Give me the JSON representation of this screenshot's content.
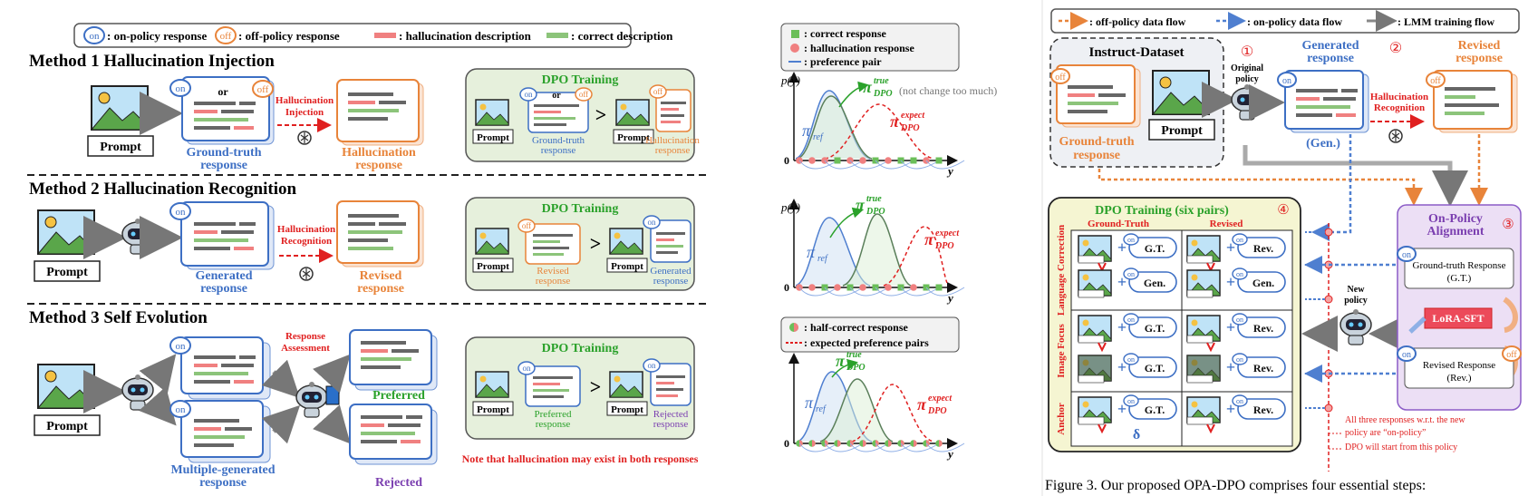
{
  "left": {
    "legend": {
      "on_badge": "on",
      "on_label": ": on-policy response",
      "off_badge": "off",
      "off_label": ": off-policy response",
      "halluc_label": ": hallucination description",
      "correct_label": ": correct description"
    },
    "method1": {
      "title": "Method 1 Hallucination Injection",
      "prompt": "Prompt",
      "or": "or",
      "gt_line1": "Ground-truth",
      "gt_line2": "response",
      "arrow_line1": "Hallucination",
      "arrow_line2": "Injection",
      "out_line1": "Hallucination",
      "out_line2": "response",
      "dpo_title": "DPO Training",
      "dpo_left_line1": "Ground-truth",
      "dpo_left_line2": "response",
      "dpo_right_line1": "Hallucination",
      "dpo_right_line2": "response"
    },
    "method2": {
      "title": "Method 2 Hallucination Recognition",
      "prompt": "Prompt",
      "gen_line1": "Generated",
      "gen_line2": "response",
      "arrow_line1": "Hallucination",
      "arrow_line2": "Recognition",
      "out_line1": "Revised",
      "out_line2": "response",
      "dpo_title": "DPO Training",
      "dpo_left_line1": "Revised",
      "dpo_left_line2": "response",
      "dpo_right_line1": "Generated",
      "dpo_right_line2": "response"
    },
    "method3": {
      "title": "Method 3 Self Evolution",
      "prompt": "Prompt",
      "assess_line1": "Response",
      "assess_line2": "Assessment",
      "preferred": "Preferred",
      "rejected": "Rejected",
      "multi_line1": "Multiple-generated",
      "multi_line2": "response",
      "dpo_title": "DPO Training",
      "dpo_left_line1": "Preferred",
      "dpo_left_line2": "response",
      "dpo_right_line1": "Rejected",
      "dpo_right_line2": "response",
      "note": "Note that hallucination may exist in both responses"
    },
    "prompt_label": "Prompt",
    "gt_symbol": ">",
    "plots": {
      "legend1": {
        "correct": ": correct response",
        "halluc": ": hallucination response",
        "pair": ": preference pair"
      },
      "legend2": {
        "half": ": half-correct response",
        "expected": ": expected preference pairs"
      },
      "py": "p(y)",
      "y": "y",
      "zero": "0",
      "pi_true": "π",
      "pi_true_sup": "true",
      "pi_true_sub": "DPO",
      "pi_ref": "π",
      "pi_ref_sub": "ref",
      "pi_exp": "π",
      "pi_exp_sup": "expect",
      "pi_exp_sub": "DPO",
      "not_change": "(not change too much)"
    }
  },
  "right": {
    "legend": {
      "off_flow": ": off-policy data flow",
      "on_flow": ": on-policy data flow",
      "lmm_flow": ": LMM training flow"
    },
    "instruct_title": "Instruct-Dataset",
    "prompt": "Prompt",
    "gt_line1": "Ground-truth",
    "gt_line2": "response",
    "step1": "①",
    "step2": "②",
    "step3": "③",
    "step4": "④",
    "original_line1": "Original",
    "original_line2": "policy",
    "gen_line1": "Generated",
    "gen_line2": "response",
    "gen_short": "(Gen.)",
    "recog_line1": "Hallucination",
    "recog_line2": "Recognition",
    "revised_line1": "Revised",
    "revised_line2": "response",
    "dpo_title": "DPO Training (six pairs)",
    "col_gt": "Ground-Truth",
    "col_rev": "Revised",
    "row_lang": "Language Correction",
    "row_image": "Image Focus",
    "row_anchor": "Anchor",
    "plus": "+",
    "gt": "G.T.",
    "gen": "Gen.",
    "rev": "Rev.",
    "delta": "δ",
    "onpa_line1": "On-Policy",
    "onpa_line2": "Alignment",
    "gt_resp_line1": "Ground-truth Response",
    "gt_resp_line2": "(G.T.)",
    "lora": "LoRA-SFT",
    "rev_resp_line1": "Revised Response",
    "rev_resp_line2": "(Rev.)",
    "new_line1": "New",
    "new_line2": "policy",
    "note_line1": "All three responses w.r.t. the new",
    "note_line2": "policy are “on-policy”",
    "note_line3": "DPO will start from this policy",
    "caption": "Figure 3. Our proposed OPA-DPO comprises four essential steps:"
  },
  "colors": {
    "on_blue": "#3d6fc4",
    "off_orange": "#e8843a",
    "halluc_red": "#f08080",
    "correct_green": "#8cc47a",
    "dpo_bg": "#e6f0dc",
    "red": "#e02020"
  }
}
